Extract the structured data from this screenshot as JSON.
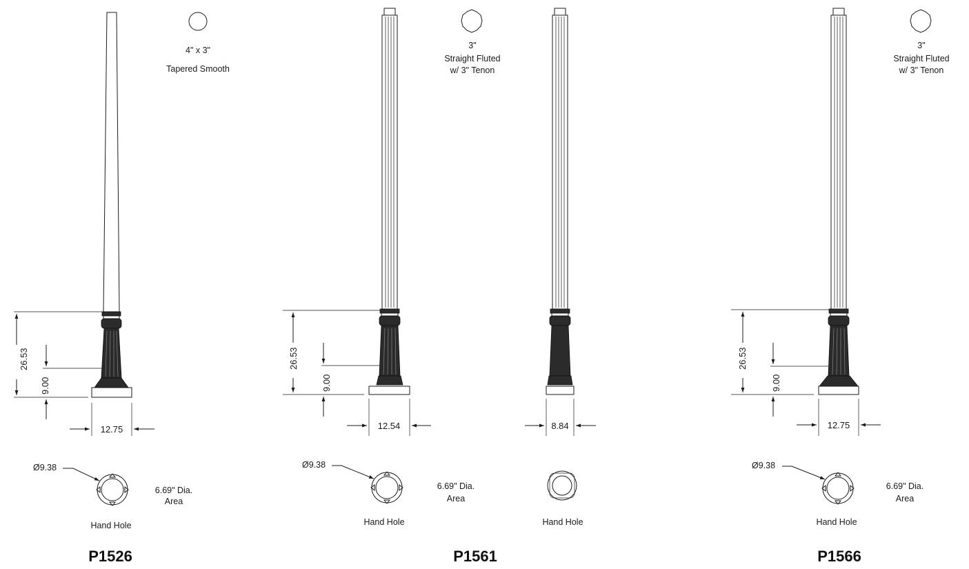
{
  "colors": {
    "ink": "#1a1a1a",
    "base_fill": "#2b2b2b",
    "background": "#ffffff"
  },
  "posts": [
    {
      "model": "P1526",
      "profile_lines": [
        "4\" x 3\"",
        "Tapered Smooth"
      ],
      "dim_height": "26.53",
      "dim_base": "9.00",
      "dim_width": "12.75",
      "bolt_circle": "Ø9.38",
      "area_lines": [
        "6.69\" Dia.",
        "Area"
      ],
      "hand_hole": "Hand Hole"
    },
    {
      "model": "P1561",
      "profile_lines": [
        "3\"",
        "Straight Fluted",
        "w/ 3\" Tenon"
      ],
      "dim_height": "26.53",
      "dim_base": "9.00",
      "dim_width": "12.54",
      "bolt_circle": "Ø9.38",
      "area_lines": [
        "6.69\" Dia.",
        "Area"
      ],
      "hand_hole": "Hand Hole",
      "side_view": {
        "dim_width": "8.84",
        "hand_hole": "Hand Hole"
      }
    },
    {
      "model": "P1566",
      "profile_lines": [
        "3\"",
        "Straight Fluted",
        "w/ 3\" Tenon"
      ],
      "dim_height": "26.53",
      "dim_base": "9.00",
      "dim_width": "12.75",
      "bolt_circle": "Ø9.38",
      "area_lines": [
        "6.69\" Dia.",
        "Area"
      ],
      "hand_hole": "Hand Hole"
    }
  ]
}
